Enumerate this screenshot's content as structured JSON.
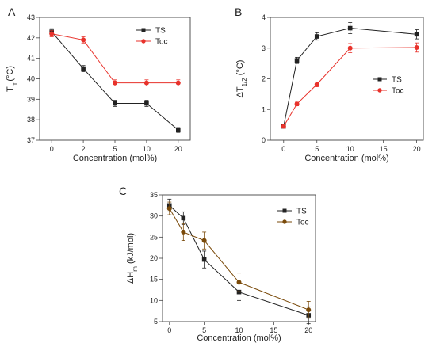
{
  "chart_data": [
    {
      "panel": "A",
      "type": "line",
      "xlabel": "Concentration (mol%)",
      "ylabel": "T_m(°C)",
      "ylabel_main": "T",
      "ylabel_sub": "m",
      "ylabel_rest": "(°C)",
      "x": [
        0,
        2,
        5,
        10,
        20
      ],
      "x_display": "categorical",
      "xticks": [
        "0",
        "2",
        "5",
        "10",
        "20"
      ],
      "yticks": [
        37,
        38,
        39,
        40,
        41,
        42,
        43
      ],
      "ylim": [
        37,
        43
      ],
      "legend_position": "top-right",
      "series": [
        {
          "name": "TS",
          "color": "#222222",
          "marker": "square",
          "values": [
            42.3,
            40.5,
            38.8,
            38.8,
            37.5
          ],
          "errors": [
            0.15,
            0.15,
            0.15,
            0.15,
            0.12
          ]
        },
        {
          "name": "Toc",
          "color": "#e8322b",
          "marker": "circle",
          "values": [
            42.2,
            41.9,
            39.8,
            39.8,
            39.8
          ],
          "errors": [
            0.15,
            0.15,
            0.15,
            0.15,
            0.15
          ]
        }
      ]
    },
    {
      "panel": "B",
      "type": "line",
      "xlabel": "Concentration (mol%)",
      "ylabel": "ΔT_1/2 (°C)",
      "ylabel_main": "ΔT",
      "ylabel_sub": "1/2",
      "ylabel_rest": " (°C)",
      "x": [
        0,
        2,
        5,
        10,
        20
      ],
      "x_display": "linear",
      "xticks": [
        "0",
        "5",
        "10",
        "15",
        "20"
      ],
      "yticks": [
        0,
        1,
        2,
        3,
        4
      ],
      "xlim": [
        -2,
        21
      ],
      "ylim": [
        0,
        4
      ],
      "legend_position": "center-right",
      "series": [
        {
          "name": "TS",
          "color": "#222222",
          "marker": "square",
          "values": [
            0.45,
            2.6,
            3.38,
            3.65,
            3.45
          ],
          "errors": [
            0.05,
            0.1,
            0.12,
            0.18,
            0.15
          ]
        },
        {
          "name": "Toc",
          "color": "#e8322b",
          "marker": "circle",
          "values": [
            0.45,
            1.18,
            1.82,
            3.0,
            3.02
          ],
          "errors": [
            0.05,
            0.06,
            0.08,
            0.15,
            0.15
          ]
        }
      ]
    },
    {
      "panel": "C",
      "type": "line",
      "xlabel": "Concentration (mol%)",
      "ylabel": "ΔH_m (kJ/mol)",
      "ylabel_main": "ΔH",
      "ylabel_sub": "m",
      "ylabel_rest": " (kJ/mol)",
      "x": [
        0,
        2,
        5,
        10,
        20
      ],
      "x_display": "linear",
      "xticks": [
        "0",
        "5",
        "10",
        "15",
        "20"
      ],
      "yticks": [
        5,
        10,
        15,
        20,
        25,
        30,
        35
      ],
      "xlim": [
        -1,
        21
      ],
      "ylim": [
        5,
        35
      ],
      "legend_position": "top-right",
      "series": [
        {
          "name": "TS",
          "color": "#222222",
          "marker": "square",
          "values": [
            32.5,
            29.5,
            19.7,
            12.0,
            6.5
          ],
          "errors": [
            1.5,
            1.5,
            2.0,
            2.0,
            2.0
          ]
        },
        {
          "name": "Toc",
          "color": "#7a4a0a",
          "marker": "circle",
          "values": [
            31.8,
            26.2,
            24.2,
            14.3,
            7.8
          ],
          "errors": [
            1.5,
            2.0,
            2.0,
            2.2,
            2.0
          ]
        }
      ]
    }
  ]
}
